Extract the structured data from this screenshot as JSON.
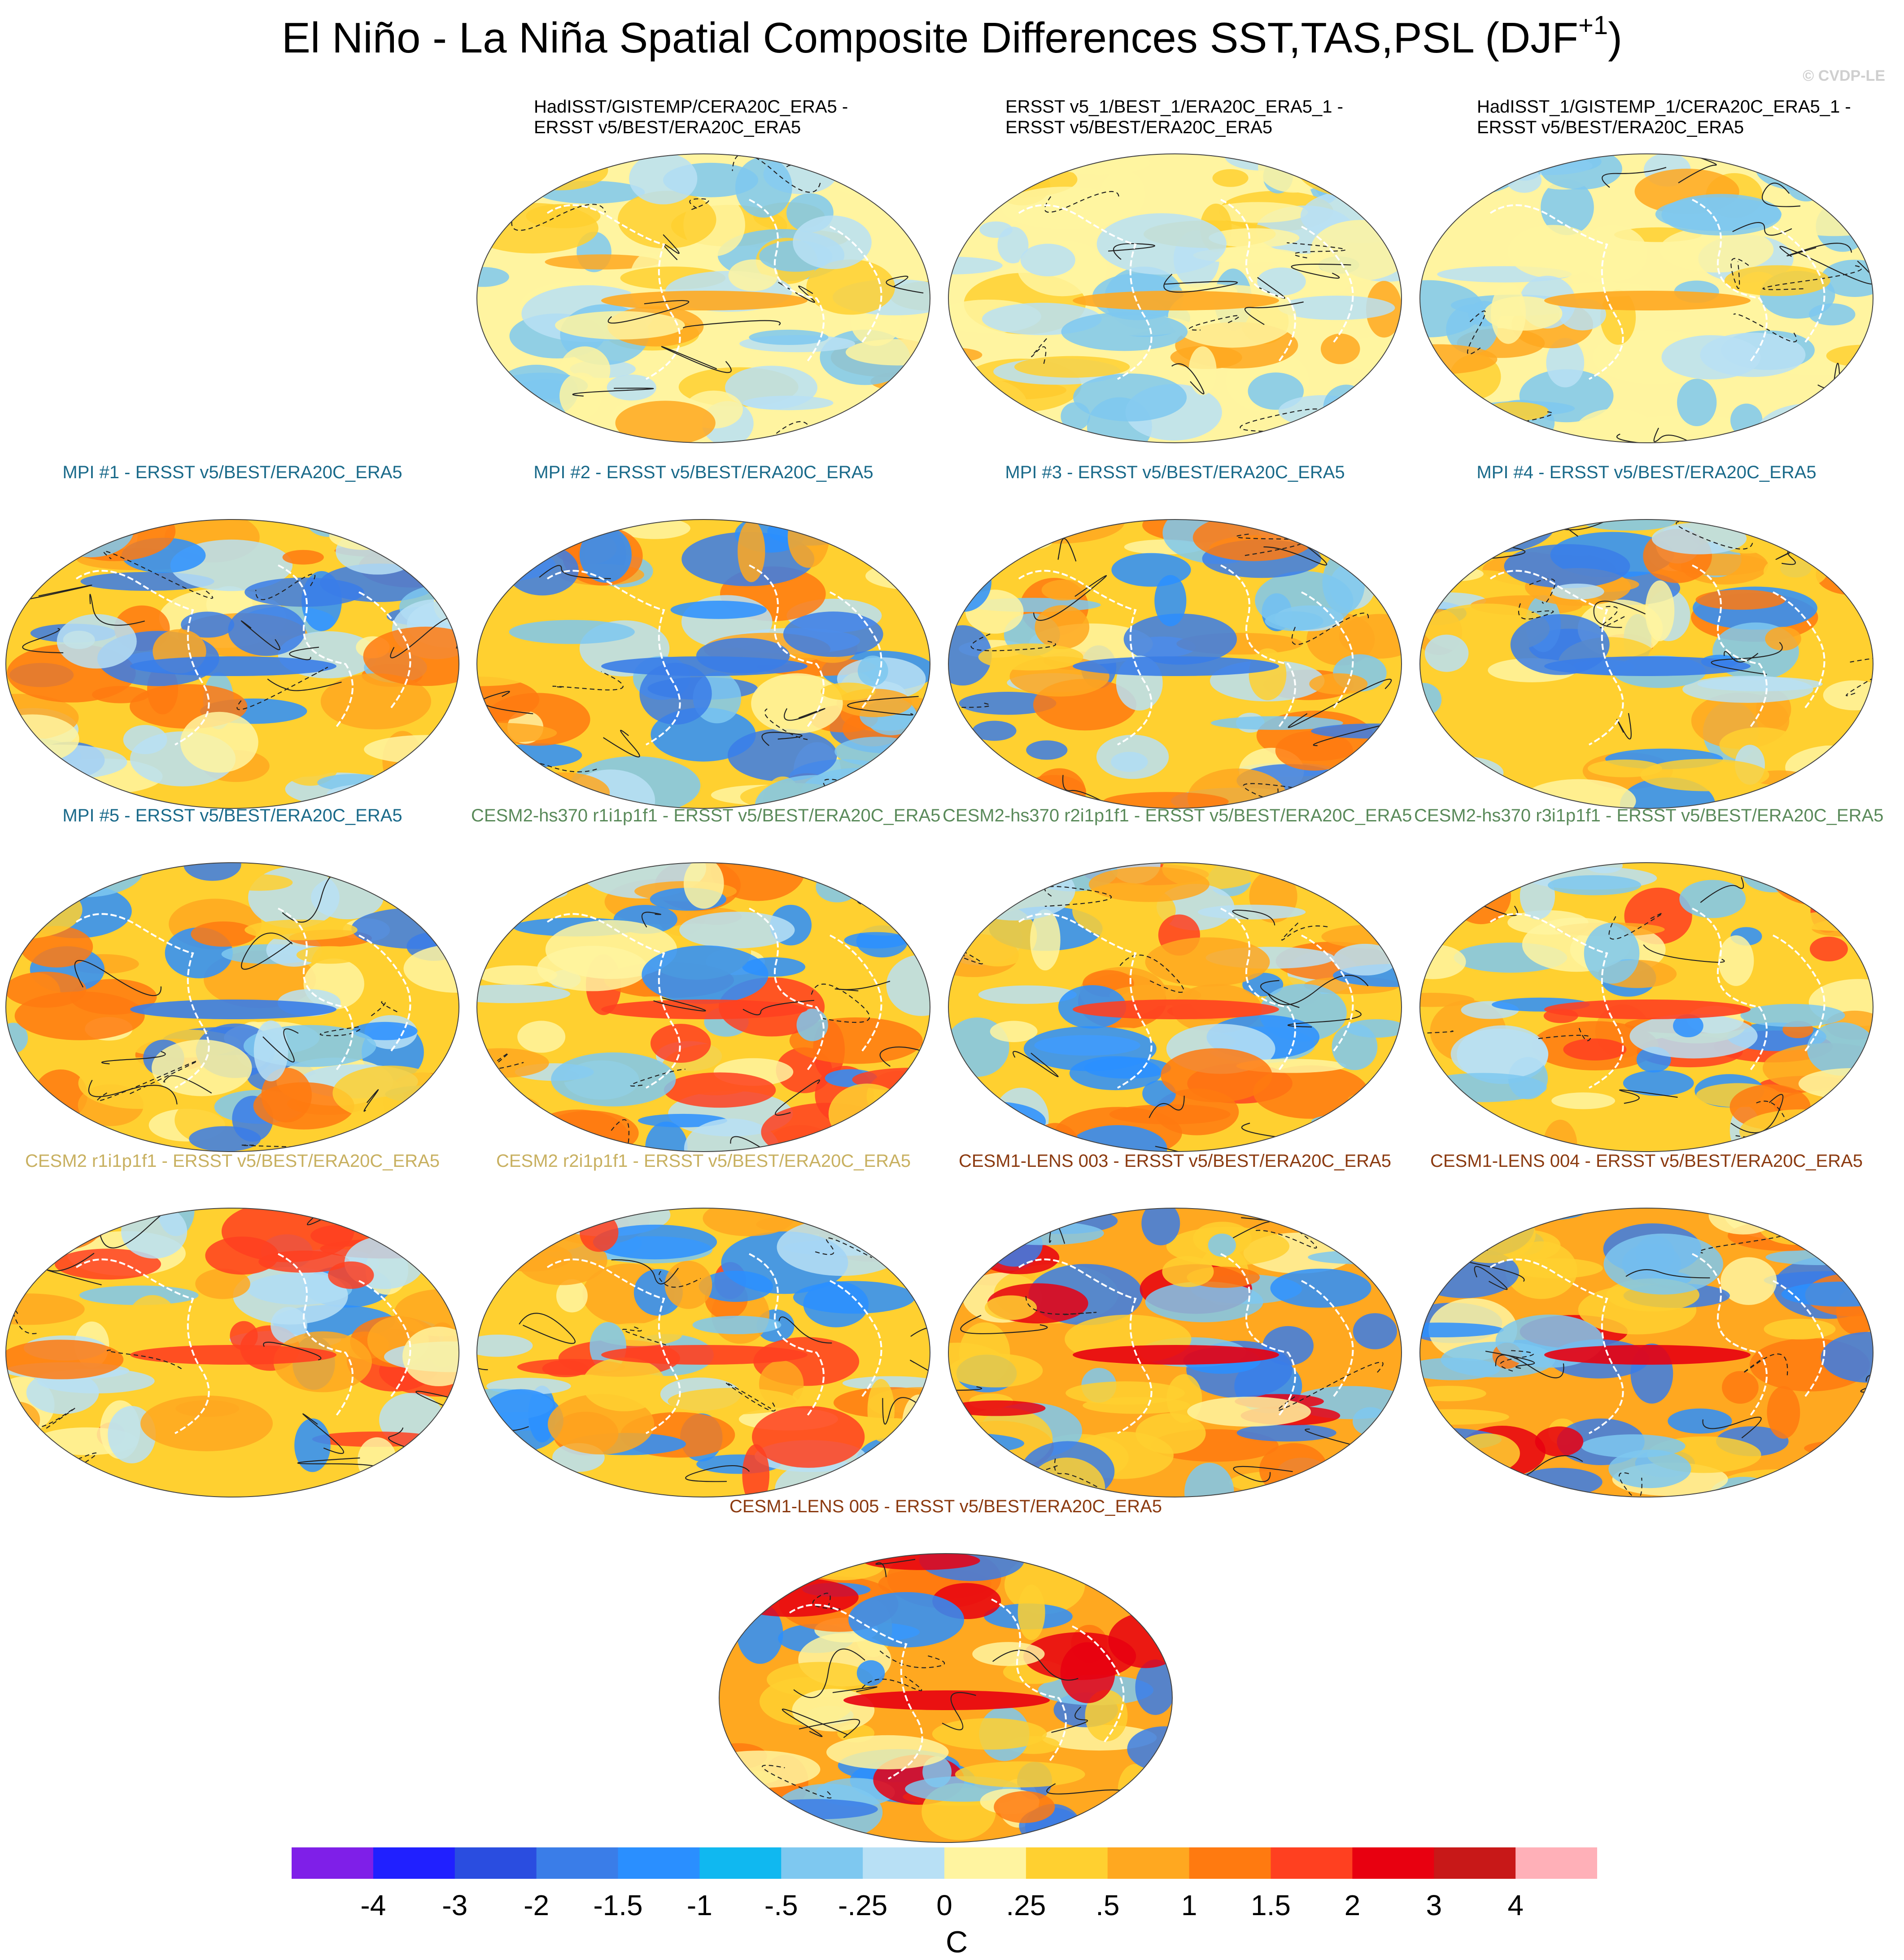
{
  "title_main": "El Niño - La Niña Spatial Composite Differences SST,TAS,PSL (DJF",
  "title_sup": "+1",
  "title_close": ")",
  "watermark": "© CVDP-LE",
  "panels": [
    {
      "line1": "HadISST/GISTEMP/CERA20C_ERA5 -",
      "line2": "ERSST v5/BEST/ERA20C_ERA5",
      "color": "#000000",
      "obs": true
    },
    {
      "line1": "ERSST v5_1/BEST_1/ERA20C_ERA5_1 -",
      "line2": "ERSST v5/BEST/ERA20C_ERA5",
      "color": "#000000",
      "obs": true
    },
    {
      "line1": "HadISST_1/GISTEMP_1/CERA20C_ERA5_1 -",
      "line2": "ERSST v5/BEST/ERA20C_ERA5",
      "color": "#000000",
      "obs": true
    },
    {
      "line1": "MPI #1 - ERSST v5/BEST/ERA20C_ERA5",
      "color": "#1a6a8a"
    },
    {
      "line1": "MPI #2 - ERSST v5/BEST/ERA20C_ERA5",
      "color": "#1a6a8a"
    },
    {
      "line1": "MPI #3 - ERSST v5/BEST/ERA20C_ERA5",
      "color": "#1a6a8a"
    },
    {
      "line1": "MPI #4 - ERSST v5/BEST/ERA20C_ERA5",
      "color": "#1a6a8a"
    },
    {
      "line1": "MPI #5 - ERSST v5/BEST/ERA20C_ERA5",
      "color": "#1a6a8a"
    },
    {
      "line1": "CESM2-hs370 r1i1p1f1 - ERSST v5/BEST/ERA20C_ERA5",
      "color": "#5a8a5a"
    },
    {
      "line1": "CESM2-hs370 r2i1p1f1 - ERSST v5/BEST/ERA20C_ERA5",
      "color": "#5a8a5a"
    },
    {
      "line1": "CESM2-hs370 r3i1p1f1 - ERSST v5/BEST/ERA20C_ERA5",
      "color": "#5a8a5a"
    },
    {
      "line1": "CESM2 r1i1p1f1 - ERSST v5/BEST/ERA20C_ERA5",
      "color": "#c8b060"
    },
    {
      "line1": "CESM2 r2i1p1f1 - ERSST v5/BEST/ERA20C_ERA5",
      "color": "#c8b060"
    },
    {
      "line1": "CESM1-LENS 003 - ERSST v5/BEST/ERA20C_ERA5",
      "color": "#8b3a10"
    },
    {
      "line1": "CESM1-LENS 004 - ERSST v5/BEST/ERA20C_ERA5",
      "color": "#8b3a10"
    },
    {
      "line1": "CESM1-LENS 005 - ERSST v5/BEST/ERA20C_ERA5",
      "color": "#8b3a10"
    }
  ],
  "colorbar": {
    "colors": [
      "#7f1fe8",
      "#2020ff",
      "#2a4de0",
      "#3a7de8",
      "#2a8fff",
      "#10b8f0",
      "#7ec8f0",
      "#b8e0f5",
      "#fff4a0",
      "#ffd030",
      "#ffa820",
      "#ff7a10",
      "#ff4020",
      "#e80010",
      "#c81818",
      "#ffb0b8"
    ],
    "labels": [
      "-4",
      "-3",
      "-2",
      "-1.5",
      "-1",
      "-.5",
      "-.25",
      "0",
      ".25",
      ".5",
      "1",
      "1.5",
      "2",
      "3",
      "4"
    ],
    "units": "C"
  }
}
